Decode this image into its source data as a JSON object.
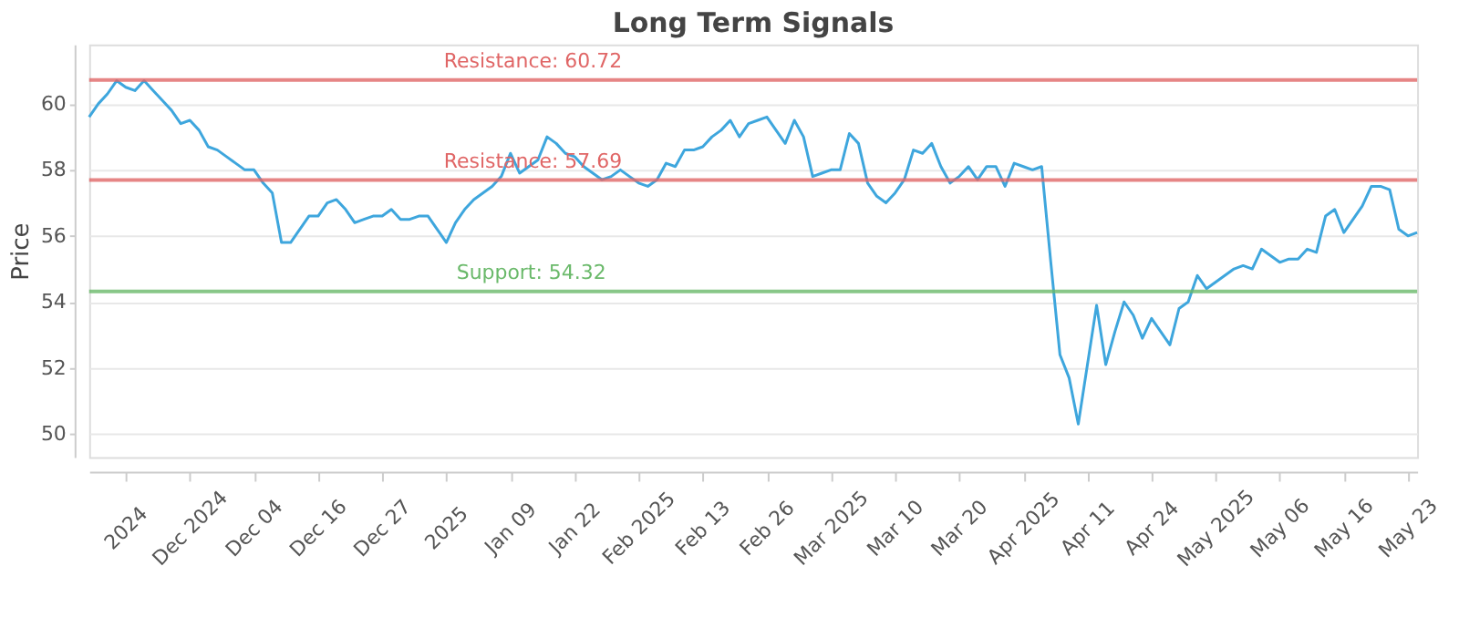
{
  "chart_data": {
    "type": "line",
    "title": "Long Term Signals",
    "ylabel": "Price",
    "categories": [
      null,
      null,
      null,
      null,
      "2024",
      null,
      null,
      null,
      null,
      null,
      null,
      "Dec 2024",
      null,
      null,
      null,
      null,
      null,
      null,
      "Dec 04",
      null,
      null,
      null,
      null,
      null,
      null,
      "Dec 16",
      null,
      null,
      null,
      null,
      null,
      null,
      "Dec 27",
      null,
      null,
      null,
      null,
      null,
      null,
      "2025",
      null,
      null,
      null,
      null,
      null,
      null,
      "Jan 09",
      null,
      null,
      null,
      null,
      null,
      null,
      "Jan 22",
      null,
      null,
      null,
      null,
      null,
      null,
      "Feb 2025",
      null,
      null,
      null,
      null,
      null,
      null,
      "Feb 13",
      null,
      null,
      null,
      null,
      null,
      null,
      "Feb 26",
      null,
      null,
      null,
      null,
      null,
      null,
      "Mar 2025",
      null,
      null,
      null,
      null,
      null,
      null,
      "Mar 10",
      null,
      null,
      null,
      null,
      null,
      null,
      "Mar 20",
      null,
      null,
      null,
      null,
      null,
      null,
      "Apr 2025",
      null,
      null,
      null,
      null,
      null,
      null,
      "Apr 11",
      null,
      null,
      null,
      null,
      null,
      null,
      "Apr 24",
      null,
      null,
      null,
      null,
      null,
      null,
      "May 2025",
      null,
      null,
      null,
      null,
      null,
      null,
      "May 06",
      null,
      null,
      null,
      null,
      null,
      null,
      "May 16",
      null,
      null,
      null,
      null,
      null,
      null,
      "May 23",
      null
    ],
    "series": [
      {
        "color": "#3ea6dd",
        "values": [
          59.6,
          60.0,
          60.3,
          60.7,
          60.5,
          60.4,
          60.7,
          60.4,
          60.1,
          59.8,
          59.4,
          59.5,
          59.2,
          58.7,
          58.6,
          58.4,
          58.2,
          58.0,
          58.0,
          57.6,
          57.3,
          55.8,
          55.8,
          56.2,
          56.6,
          56.6,
          57.0,
          57.1,
          56.8,
          56.4,
          56.5,
          56.6,
          56.6,
          56.8,
          56.5,
          56.5,
          56.6,
          56.6,
          56.2,
          55.8,
          56.4,
          56.8,
          57.1,
          57.3,
          57.5,
          57.8,
          58.5,
          57.9,
          58.1,
          58.3,
          59.0,
          58.8,
          58.5,
          58.4,
          58.1,
          57.9,
          57.7,
          57.8,
          58.0,
          57.8,
          57.6,
          57.5,
          57.7,
          58.2,
          58.1,
          58.6,
          58.6,
          58.7,
          59.0,
          59.2,
          59.5,
          59.0,
          59.4,
          59.5,
          59.6,
          59.2,
          58.8,
          59.5,
          59.0,
          57.8,
          57.9,
          58.0,
          58.0,
          59.1,
          58.8,
          57.6,
          57.2,
          57.0,
          57.3,
          57.7,
          58.6,
          58.5,
          58.8,
          58.1,
          57.6,
          57.8,
          58.1,
          57.7,
          58.1,
          58.1,
          57.5,
          58.2,
          58.1,
          58.0,
          58.1,
          55.2,
          52.4,
          51.7,
          50.3,
          52.1,
          53.9,
          52.1,
          53.1,
          54.0,
          53.6,
          52.9,
          53.5,
          53.1,
          52.7,
          53.8,
          54.0,
          54.8,
          54.4,
          54.6,
          54.8,
          55.0,
          55.1,
          55.0,
          55.6,
          55.4,
          55.2,
          55.3,
          55.3,
          55.6,
          55.5,
          56.6,
          56.8,
          56.1,
          56.5,
          56.9,
          57.5,
          57.5,
          57.4,
          56.2,
          56.0,
          56.1
        ]
      }
    ],
    "ylim": [
      49.3,
      61.8
    ],
    "yticks": [
      50,
      52,
      54,
      56,
      58,
      60
    ],
    "grid": "y",
    "ref_lines": [
      {
        "axis": "y",
        "value": 60.72,
        "label": "Resistance: 60.72",
        "color": "#e06666"
      },
      {
        "axis": "y",
        "value": 57.69,
        "label": "Resistance: 57.69",
        "color": "#e06666"
      },
      {
        "axis": "y",
        "value": 54.32,
        "label": "Support: 54.32",
        "color": "#6ab96a"
      }
    ]
  }
}
